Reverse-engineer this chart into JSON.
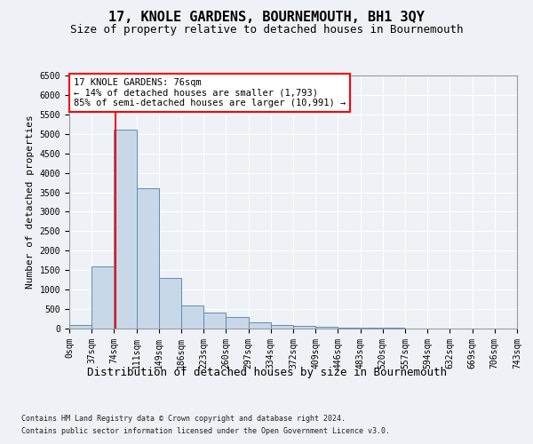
{
  "title": "17, KNOLE GARDENS, BOURNEMOUTH, BH1 3QY",
  "subtitle": "Size of property relative to detached houses in Bournemouth",
  "xlabel": "Distribution of detached houses by size in Bournemouth",
  "ylabel": "Number of detached properties",
  "bin_labels": [
    "0sqm",
    "37sqm",
    "74sqm",
    "111sqm",
    "149sqm",
    "186sqm",
    "223sqm",
    "260sqm",
    "297sqm",
    "334sqm",
    "372sqm",
    "409sqm",
    "446sqm",
    "483sqm",
    "520sqm",
    "557sqm",
    "594sqm",
    "632sqm",
    "669sqm",
    "706sqm",
    "743sqm"
  ],
  "bar_values": [
    80,
    1600,
    5100,
    3600,
    1300,
    600,
    400,
    300,
    150,
    100,
    60,
    40,
    30,
    20,
    15,
    10,
    8,
    6,
    5,
    4
  ],
  "bar_color": "#c8d8e8",
  "bar_edgecolor": "#5b8db8",
  "property_line_x": 76,
  "annotation_text": "17 KNOLE GARDENS: 76sqm\n← 14% of detached houses are smaller (1,793)\n85% of semi-detached houses are larger (10,991) →",
  "annotation_box_color": "white",
  "annotation_box_edgecolor": "red",
  "vline_color": "red",
  "ylim": [
    0,
    6500
  ],
  "yticks": [
    0,
    500,
    1000,
    1500,
    2000,
    2500,
    3000,
    3500,
    4000,
    4500,
    5000,
    5500,
    6000,
    6500
  ],
  "footer_line1": "Contains HM Land Registry data © Crown copyright and database right 2024.",
  "footer_line2": "Contains public sector information licensed under the Open Government Licence v3.0.",
  "background_color": "#eef2f7",
  "plot_bg_color": "#eef2f7",
  "grid_color": "#ffffff",
  "title_fontsize": 11,
  "subtitle_fontsize": 9,
  "ylabel_fontsize": 8,
  "xlabel_fontsize": 9,
  "tick_fontsize": 7,
  "footer_fontsize": 6
}
